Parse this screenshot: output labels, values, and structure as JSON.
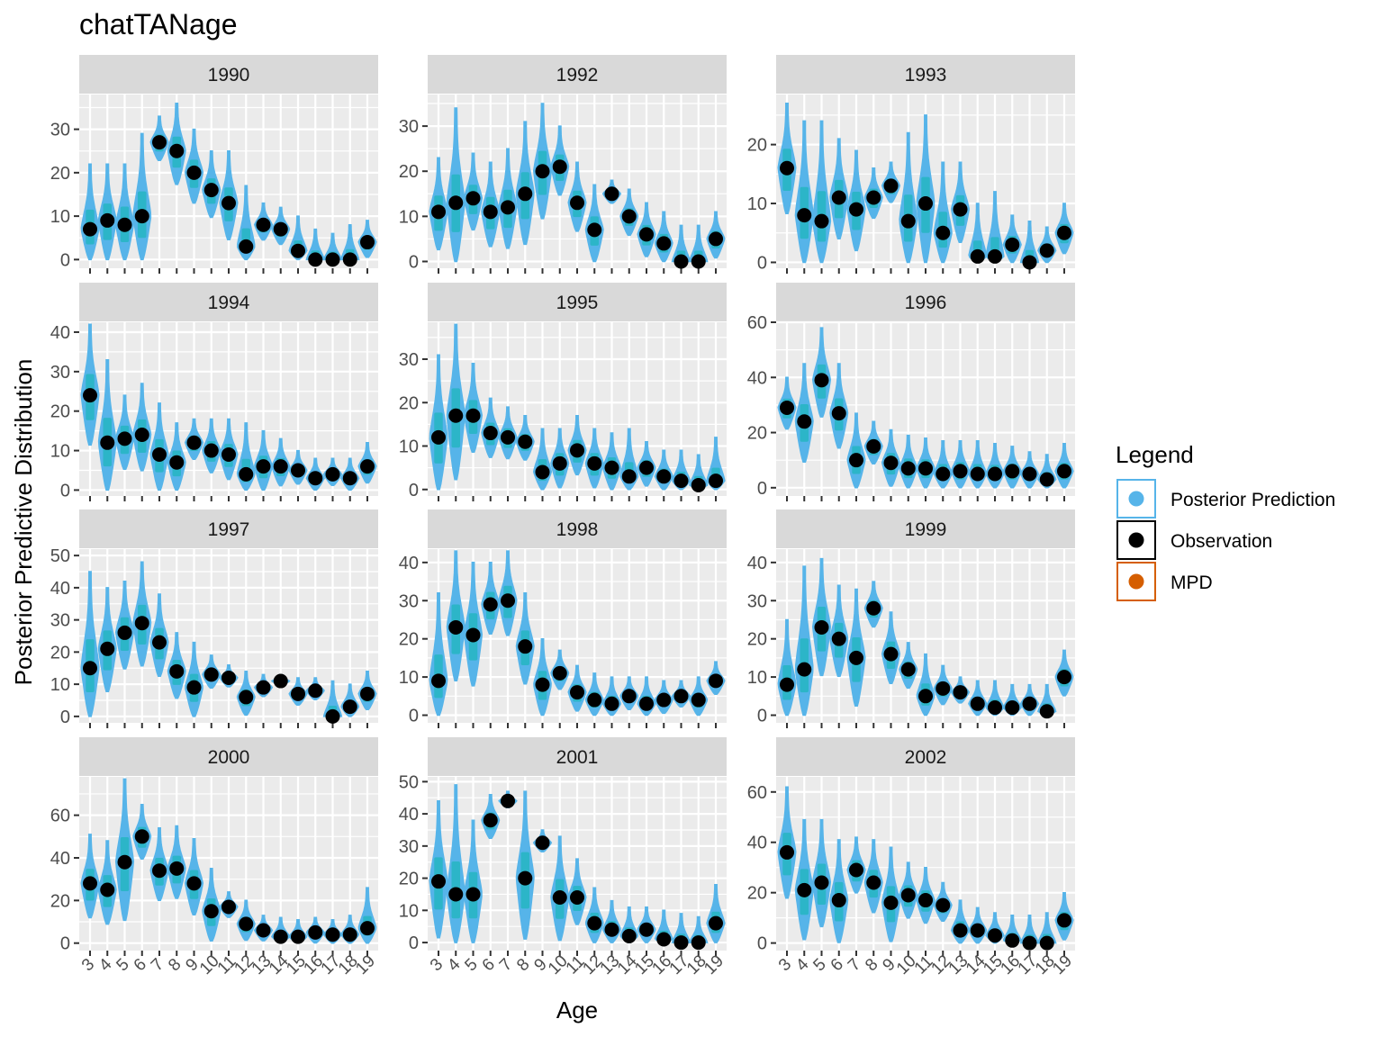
{
  "chart_data": {
    "type": "violin",
    "title": "chatTANage",
    "xlabel": "Age",
    "ylabel": "Posterior Predictive Distribution",
    "ages": [
      3,
      4,
      5,
      6,
      7,
      8,
      9,
      10,
      11,
      12,
      13,
      14,
      15,
      16,
      17,
      18,
      19
    ],
    "legend": {
      "title": "Legend",
      "placement": "right",
      "items": [
        {
          "label": "Posterior Prediction",
          "color": "#56b4e9"
        },
        {
          "label": "Observation",
          "color": "#000000"
        },
        {
          "label": "MPD",
          "color": "#d55e00"
        }
      ]
    },
    "colors": {
      "violin": "#56b4e9",
      "violin_core": "#2cb5c8",
      "observation": "#000000",
      "panel_background": "#ebebeb",
      "gridline": "#ffffff",
      "strip_background": "#d9d9d9"
    },
    "panels": [
      {
        "year": "1990",
        "ylim": [
          -2,
          38
        ],
        "yticks": [
          0,
          10,
          20,
          30
        ],
        "observed": [
          7,
          9,
          8,
          10,
          27,
          25,
          20,
          16,
          13,
          3,
          8,
          7,
          2,
          0,
          0,
          0,
          4
        ],
        "pred_max": [
          22,
          22,
          22,
          29,
          33,
          36,
          30,
          25,
          25,
          17,
          13,
          12,
          10,
          7,
          6,
          8,
          9
        ]
      },
      {
        "year": "1992",
        "ylim": [
          -1.5,
          37
        ],
        "yticks": [
          0,
          10,
          20,
          30
        ],
        "observed": [
          11,
          13,
          14,
          11,
          12,
          15,
          20,
          21,
          13,
          7,
          15,
          10,
          6,
          4,
          0,
          0,
          5
        ],
        "pred_max": [
          23,
          34,
          24,
          22,
          25,
          31,
          35,
          30,
          22,
          17,
          18,
          16,
          13,
          11,
          8,
          8,
          11
        ]
      },
      {
        "year": "1993",
        "ylim": [
          -1,
          28.5
        ],
        "yticks": [
          0,
          10,
          20
        ],
        "observed": [
          16,
          8,
          7,
          11,
          9,
          11,
          13,
          7,
          10,
          5,
          9,
          1,
          1,
          3,
          0,
          2,
          5
        ],
        "pred_max": [
          27,
          24,
          24,
          21,
          19,
          16,
          17,
          22,
          25,
          17,
          17,
          10,
          12,
          8,
          7,
          6,
          10
        ]
      },
      {
        "year": "1994",
        "ylim": [
          -1.5,
          42.5
        ],
        "yticks": [
          0,
          10,
          20,
          30,
          40
        ],
        "observed": [
          24,
          12,
          13,
          14,
          9,
          7,
          12,
          10,
          9,
          4,
          6,
          6,
          5,
          3,
          4,
          3,
          6
        ],
        "pred_max": [
          42,
          33,
          24,
          27,
          22,
          17,
          18,
          18,
          18,
          17,
          15,
          13,
          10,
          8,
          8,
          8,
          12
        ]
      },
      {
        "year": "1995",
        "ylim": [
          -1.5,
          38.5
        ],
        "yticks": [
          0,
          10,
          20,
          30
        ],
        "observed": [
          12,
          17,
          17,
          13,
          12,
          11,
          4,
          6,
          9,
          6,
          5,
          3,
          5,
          3,
          2,
          1,
          2
        ],
        "pred_max": [
          31,
          38,
          29,
          21,
          19,
          17,
          14,
          14,
          17,
          14,
          13,
          14,
          11,
          9,
          9,
          8,
          12
        ]
      },
      {
        "year": "1996",
        "ylim": [
          -3,
          60
        ],
        "yticks": [
          0,
          20,
          40,
          60
        ],
        "observed": [
          29,
          24,
          39,
          27,
          10,
          15,
          9,
          7,
          7,
          5,
          6,
          5,
          5,
          6,
          5,
          3,
          6
        ],
        "pred_max": [
          40,
          45,
          58,
          45,
          27,
          24,
          21,
          19,
          18,
          17,
          17,
          17,
          16,
          15,
          13,
          12,
          16
        ]
      },
      {
        "year": "1997",
        "ylim": [
          -2,
          52
        ],
        "yticks": [
          0,
          10,
          20,
          30,
          40,
          50
        ],
        "observed": [
          15,
          21,
          26,
          29,
          23,
          14,
          9,
          13,
          12,
          6,
          9,
          11,
          7,
          8,
          0,
          3,
          7
        ],
        "pred_max": [
          45,
          40,
          42,
          48,
          38,
          26,
          23,
          19,
          16,
          14,
          13,
          13,
          12,
          12,
          11,
          10,
          14
        ]
      },
      {
        "year": "1998",
        "ylim": [
          -2,
          43.5
        ],
        "yticks": [
          0,
          10,
          20,
          30,
          40
        ],
        "observed": [
          9,
          23,
          21,
          29,
          30,
          18,
          8,
          11,
          6,
          4,
          3,
          5,
          3,
          4,
          5,
          4,
          9
        ],
        "pred_max": [
          32,
          43,
          40,
          40,
          43,
          32,
          20,
          17,
          13,
          11,
          10,
          10,
          10,
          9,
          9,
          10,
          14
        ]
      },
      {
        "year": "1999",
        "ylim": [
          -2,
          43.5
        ],
        "yticks": [
          0,
          10,
          20,
          30,
          40
        ],
        "observed": [
          8,
          12,
          23,
          20,
          15,
          28,
          16,
          12,
          5,
          7,
          6,
          3,
          2,
          2,
          3,
          1,
          10
        ],
        "pred_max": [
          25,
          39,
          41,
          34,
          33,
          35,
          27,
          19,
          16,
          13,
          10,
          9,
          9,
          8,
          8,
          8,
          17
        ]
      },
      {
        "year": "2000",
        "ylim": [
          -3.5,
          78
        ],
        "yticks": [
          0,
          20,
          40,
          60
        ],
        "observed": [
          28,
          25,
          38,
          50,
          34,
          35,
          28,
          15,
          17,
          9,
          6,
          3,
          3,
          5,
          4,
          4,
          7
        ],
        "pred_max": [
          51,
          48,
          77,
          65,
          54,
          55,
          49,
          35,
          24,
          20,
          13,
          12,
          11,
          12,
          11,
          13,
          26
        ]
      },
      {
        "year": "2001",
        "ylim": [
          -2.5,
          51.5
        ],
        "yticks": [
          0,
          10,
          20,
          30,
          40,
          50
        ],
        "observed": [
          19,
          15,
          15,
          38,
          44,
          20,
          31,
          14,
          14,
          6,
          4,
          2,
          4,
          1,
          0,
          0,
          6
        ],
        "pred_max": [
          44,
          49,
          38,
          46,
          47,
          47,
          35,
          33,
          26,
          17,
          13,
          11,
          11,
          10,
          9,
          8,
          18
        ]
      },
      {
        "year": "2002",
        "ylim": [
          -3,
          66
        ],
        "yticks": [
          0,
          20,
          40,
          60
        ],
        "observed": [
          36,
          21,
          24,
          17,
          29,
          24,
          16,
          19,
          17,
          15,
          5,
          5,
          3,
          1,
          0,
          0,
          9
        ],
        "pred_max": [
          62,
          49,
          49,
          41,
          42,
          41,
          38,
          32,
          30,
          24,
          17,
          14,
          12,
          11,
          11,
          12,
          20
        ]
      }
    ]
  }
}
